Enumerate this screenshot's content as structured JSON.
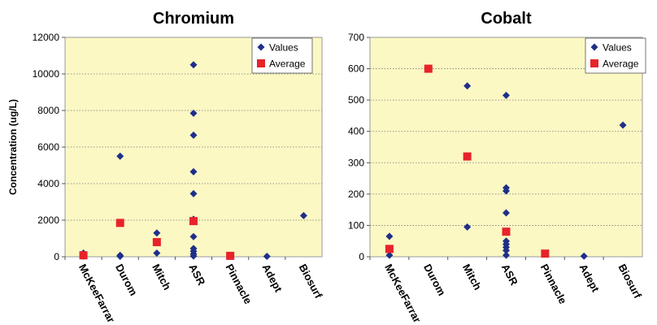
{
  "chart_data": [
    {
      "type": "scatter",
      "title": "Chromium",
      "xlabel": "",
      "ylabel": "Concentration (ug/L)",
      "categories": [
        "McKeeFarrar",
        "Durom",
        "Mitch",
        "ASR",
        "Pinnacle",
        "Adept",
        "Biosurf"
      ],
      "ylim": [
        0,
        12000
      ],
      "yticks": [
        0,
        2000,
        4000,
        6000,
        8000,
        10000,
        12000
      ],
      "grid": true,
      "legend_position": "top-right",
      "series": [
        {
          "name": "Values",
          "marker": "diamond",
          "color": "#1f2f8a",
          "points": [
            [
              "McKeeFarrar",
              200
            ],
            [
              "McKeeFarrar",
              30
            ],
            [
              "Durom",
              5500
            ],
            [
              "Durom",
              80
            ],
            [
              "Durom",
              20
            ],
            [
              "Mitch",
              1300
            ],
            [
              "Mitch",
              200
            ],
            [
              "ASR",
              10500
            ],
            [
              "ASR",
              7850
            ],
            [
              "ASR",
              6650
            ],
            [
              "ASR",
              4650
            ],
            [
              "ASR",
              3450
            ],
            [
              "ASR",
              2050
            ],
            [
              "ASR",
              1100
            ],
            [
              "ASR",
              450
            ],
            [
              "ASR",
              300
            ],
            [
              "ASR",
              150
            ],
            [
              "ASR",
              40
            ],
            [
              "Adept",
              20
            ],
            [
              "Biosurf",
              2250
            ]
          ]
        },
        {
          "name": "Average",
          "marker": "square",
          "color": "#e8232a",
          "points": [
            [
              "McKeeFarrar",
              80
            ],
            [
              "Durom",
              1850
            ],
            [
              "Mitch",
              800
            ],
            [
              "ASR",
              1950
            ],
            [
              "Pinnacle",
              50
            ]
          ]
        }
      ]
    },
    {
      "type": "scatter",
      "title": "Cobalt",
      "xlabel": "",
      "ylabel": "",
      "categories": [
        "McKeeFarrar",
        "Durom",
        "Mitch",
        "ASR",
        "Pinnacle",
        "Adept",
        "Biosurf"
      ],
      "ylim": [
        0,
        700
      ],
      "yticks": [
        0,
        100,
        200,
        300,
        400,
        500,
        600,
        700
      ],
      "grid": true,
      "legend_position": "top-right",
      "series": [
        {
          "name": "Values",
          "marker": "diamond",
          "color": "#1f2f8a",
          "points": [
            [
              "McKeeFarrar",
              65
            ],
            [
              "McKeeFarrar",
              5
            ],
            [
              "Mitch",
              545
            ],
            [
              "Mitch",
              95
            ],
            [
              "ASR",
              515
            ],
            [
              "ASR",
              220
            ],
            [
              "ASR",
              210
            ],
            [
              "ASR",
              140
            ],
            [
              "ASR",
              50
            ],
            [
              "ASR",
              40
            ],
            [
              "ASR",
              30
            ],
            [
              "ASR",
              20
            ],
            [
              "ASR",
              5
            ],
            [
              "Adept",
              2
            ],
            [
              "Biosurf",
              420
            ]
          ]
        },
        {
          "name": "Average",
          "marker": "square",
          "color": "#e8232a",
          "points": [
            [
              "McKeeFarrar",
              25
            ],
            [
              "Durom",
              600
            ],
            [
              "Mitch",
              320
            ],
            [
              "ASR",
              80
            ],
            [
              "Pinnacle",
              10
            ]
          ]
        }
      ]
    }
  ]
}
